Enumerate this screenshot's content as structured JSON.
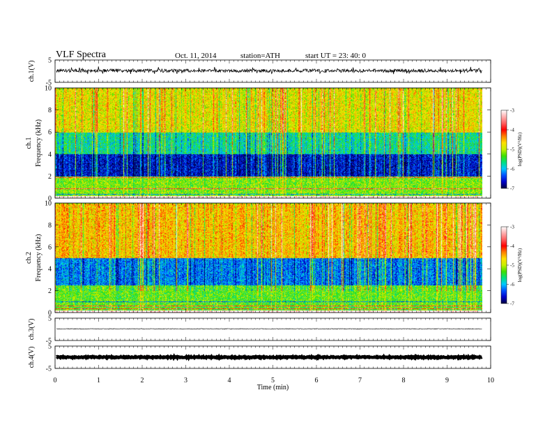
{
  "header": {
    "title": "VLF  Spectra",
    "date": "Oct. 11, 2014",
    "station": "station=ATH",
    "start": "start  UT  =   23: 40: 0"
  },
  "chart_data": [
    {
      "type": "line",
      "panel": "ch1-waveform",
      "ylabel": "ch.1(V)",
      "ylim": [
        -5,
        5
      ],
      "y_ticks": [
        "5",
        "-5"
      ],
      "x_unit": "min",
      "xlim": [
        0,
        10
      ],
      "data_extent_min": 9.8,
      "baseline_level": 0.2,
      "amplitude_range": [
        -1.0,
        1.5
      ],
      "color": "#000000"
    },
    {
      "type": "heatmap",
      "panel": "ch1-spectrogram",
      "ylabel": "ch.1\nFrequency  (kHz)",
      "ylim": [
        0,
        10
      ],
      "y_ticks": [
        "0",
        "2",
        "4",
        "6",
        "8",
        "10"
      ],
      "xlim": [
        0,
        10
      ],
      "data_extent_min": 9.8,
      "colorbar": {
        "label": "log(PSD)(V²/Hz)",
        "range": [
          -7,
          -3
        ],
        "ticks": [
          "-3",
          "-4",
          "-5",
          "-6",
          "-7"
        ],
        "colors": [
          "#000040",
          "#0000c8",
          "#0050ff",
          "#00c8ff",
          "#00e080",
          "#40e000",
          "#c8f000",
          "#ffe000",
          "#ff8000",
          "#ff0000",
          "#ff6060",
          "#ffb0b0",
          "#ffffff"
        ]
      },
      "bands_kHz": [
        {
          "from": 0,
          "to": 2,
          "level": -5.2,
          "note": "horizontal narrowband lines"
        },
        {
          "from": 2,
          "to": 4,
          "level": -6.6
        },
        {
          "from": 4,
          "to": 6,
          "level": -5.7
        },
        {
          "from": 6,
          "to": 10,
          "level": -4.8
        }
      ]
    },
    {
      "type": "heatmap",
      "panel": "ch2-spectrogram",
      "ylabel": "ch.2\nFrequency  (kHz)",
      "ylim": [
        0,
        10
      ],
      "y_ticks": [
        "0",
        "2",
        "4",
        "6",
        "8",
        "10"
      ],
      "xlim": [
        0,
        10
      ],
      "data_extent_min": 9.8,
      "colorbar": {
        "label": "log(PSD)(V²/Hz)",
        "range": [
          -7,
          -3
        ],
        "ticks": [
          "-3",
          "-4",
          "-5",
          "-6",
          "-7"
        ]
      },
      "bands_kHz": [
        {
          "from": 0,
          "to": 2.5,
          "level": -5.3,
          "note": "horizontal narrowband lines"
        },
        {
          "from": 2.5,
          "to": 5,
          "level": -6.2
        },
        {
          "from": 5,
          "to": 10,
          "level": -4.6
        }
      ]
    },
    {
      "type": "line",
      "panel": "ch3-waveform",
      "ylabel": "ch.3(V)",
      "ylim": [
        -5,
        5
      ],
      "y_ticks": [
        "5",
        "-5"
      ],
      "xlim": [
        0,
        10
      ],
      "data_extent_min": 9.8,
      "baseline_level": 0.2,
      "amplitude_range": [
        -0.2,
        0.2
      ],
      "color": "#000000"
    },
    {
      "type": "line",
      "panel": "ch4-waveform",
      "ylabel": "ch.4(V)",
      "ylim": [
        -5,
        5
      ],
      "y_ticks": [
        "5",
        "-5"
      ],
      "xlim": [
        0,
        10
      ],
      "data_extent_min": 9.8,
      "baseline_level": 0.0,
      "amplitude_range": [
        -0.3,
        0.3
      ],
      "color": "#000000"
    }
  ],
  "x_axis": {
    "label": "Time  (min)",
    "ticks": [
      "0",
      "1",
      "2",
      "3",
      "4",
      "5",
      "6",
      "7",
      "8",
      "9",
      "10"
    ]
  }
}
